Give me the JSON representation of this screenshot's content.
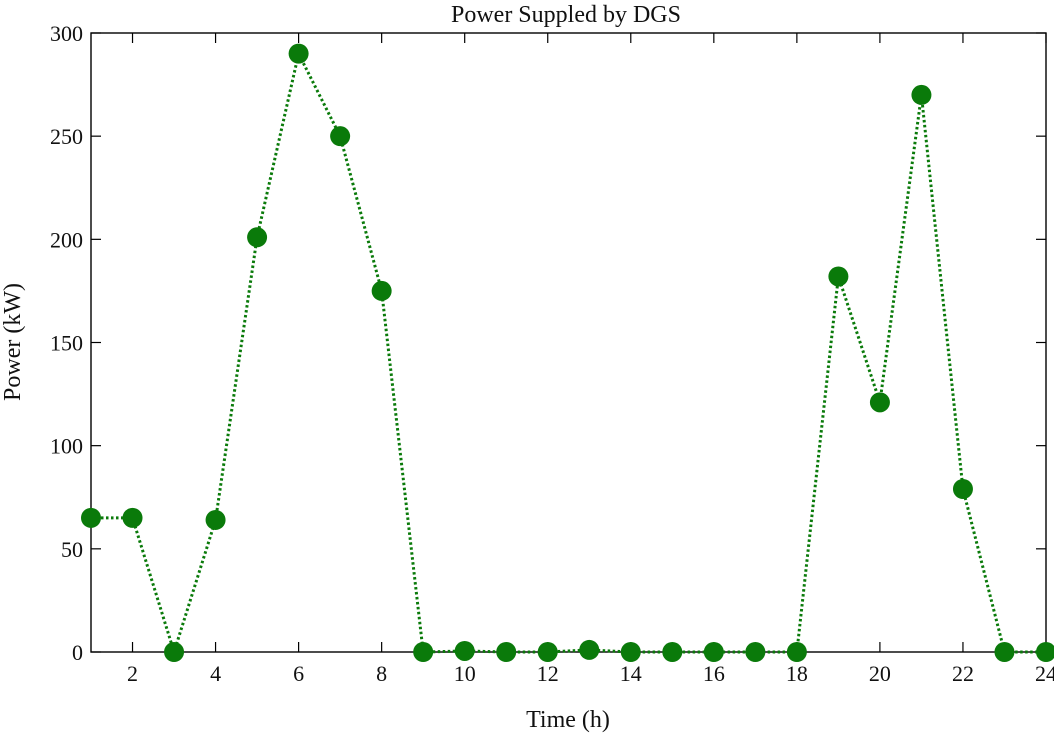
{
  "chart_data": {
    "type": "line",
    "title": "Power Suppled by DGS",
    "xlabel": "Time (h)",
    "ylabel": "Power (kW)",
    "xlim": [
      1,
      24
    ],
    "ylim": [
      0,
      300
    ],
    "xticks": [
      2,
      4,
      6,
      8,
      10,
      12,
      14,
      16,
      18,
      20,
      22,
      24
    ],
    "yticks": [
      0,
      50,
      100,
      150,
      200,
      250,
      300
    ],
    "grid": false,
    "series": [
      {
        "x": [
          1,
          2,
          3,
          4,
          5,
          6,
          7,
          8,
          9,
          10,
          11,
          12,
          13,
          14,
          15,
          16,
          17,
          18,
          19,
          20,
          21,
          22,
          23,
          24
        ],
        "y": [
          65,
          65,
          0,
          64,
          201,
          290,
          250,
          175,
          0,
          0.5,
          0,
          0,
          1,
          0,
          0,
          0,
          0,
          0,
          182,
          121,
          270,
          79,
          0,
          0
        ],
        "color": "#0a7a0a",
        "line_style": "dotted",
        "marker": "circle"
      }
    ]
  }
}
